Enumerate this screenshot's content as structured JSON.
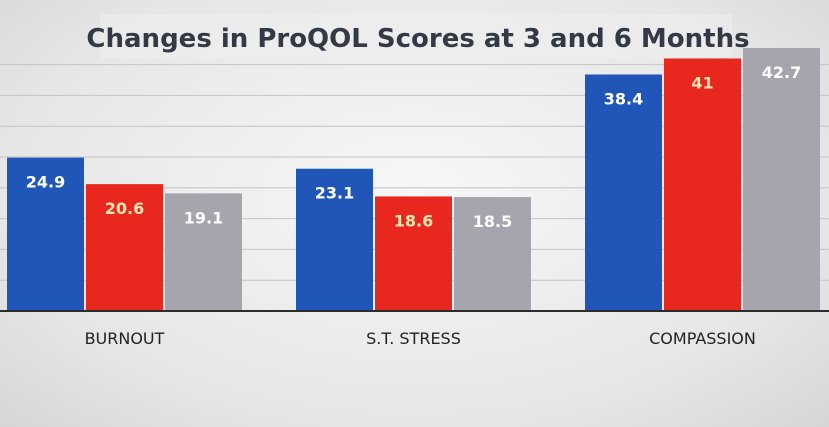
{
  "chart_data": {
    "type": "bar",
    "title": "Changes in ProQOL Scores at 3 and 6 Months",
    "categories": [
      "BURNOUT",
      "S.T. STRESS",
      "COMPASSION"
    ],
    "series": [
      {
        "values": [
          24.9,
          23.1,
          38.4
        ],
        "color": "#1f56b8",
        "label_color": "#ffffff"
      },
      {
        "values": [
          20.6,
          18.6,
          41
        ],
        "color": "#e8281e",
        "label_color": "#f5e6b0"
      },
      {
        "values": [
          19.1,
          18.5,
          42.7
        ],
        "color": "#a6a4ad",
        "label_color": "#ffffff"
      }
    ],
    "ylim": [
      0,
      44
    ],
    "grid": true,
    "legend": false
  }
}
